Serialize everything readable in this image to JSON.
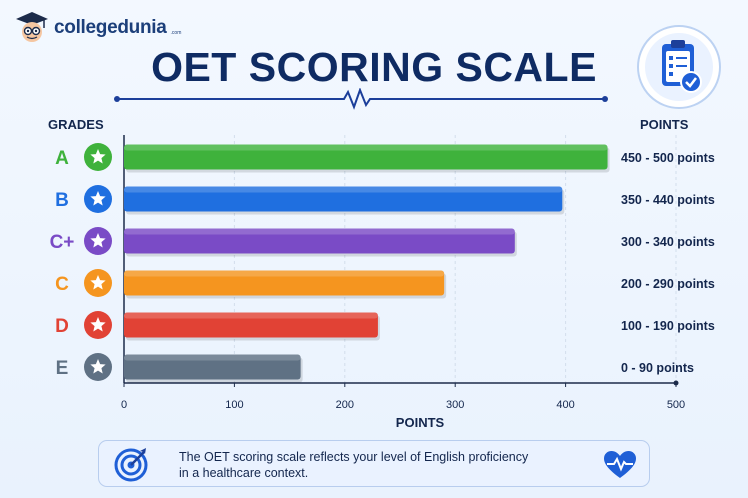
{
  "brand": {
    "name": "collegedunia",
    "tld": ".com"
  },
  "title": "OET SCORING SCALE",
  "headers": {
    "grades": "GRADES",
    "points": "POINTS"
  },
  "colors": {
    "A": "#3fb23c",
    "B": "#1f6fe0",
    "C+": "#7a4bc6",
    "C": "#f5951f",
    "D": "#e14235",
    "E": "#5f7184",
    "navy": "#0f2b63"
  },
  "icons": [
    "clipboard-check-icon",
    "star-icon",
    "target-icon",
    "heart-pulse-icon",
    "mascot-icon"
  ],
  "chart_data": {
    "type": "bar",
    "orientation": "horizontal",
    "categories": [
      "A",
      "B",
      "C+",
      "C",
      "D",
      "E"
    ],
    "values": [
      438,
      397,
      354,
      290,
      230,
      160
    ],
    "point_labels": [
      "450 - 500 points",
      "350 - 440 points",
      "300 - 340 points",
      "200 - 290 points",
      "100 - 190 points",
      "0 - 90 points"
    ],
    "xlabel": "POINTS",
    "xlim": [
      0,
      500
    ],
    "xticks": [
      "0",
      "100",
      "200",
      "300",
      "400",
      "500"
    ],
    "grid": true
  },
  "footer": {
    "line1": "The OET scoring scale reflects your level of English proficiency",
    "line2": "in a healthcare context."
  }
}
